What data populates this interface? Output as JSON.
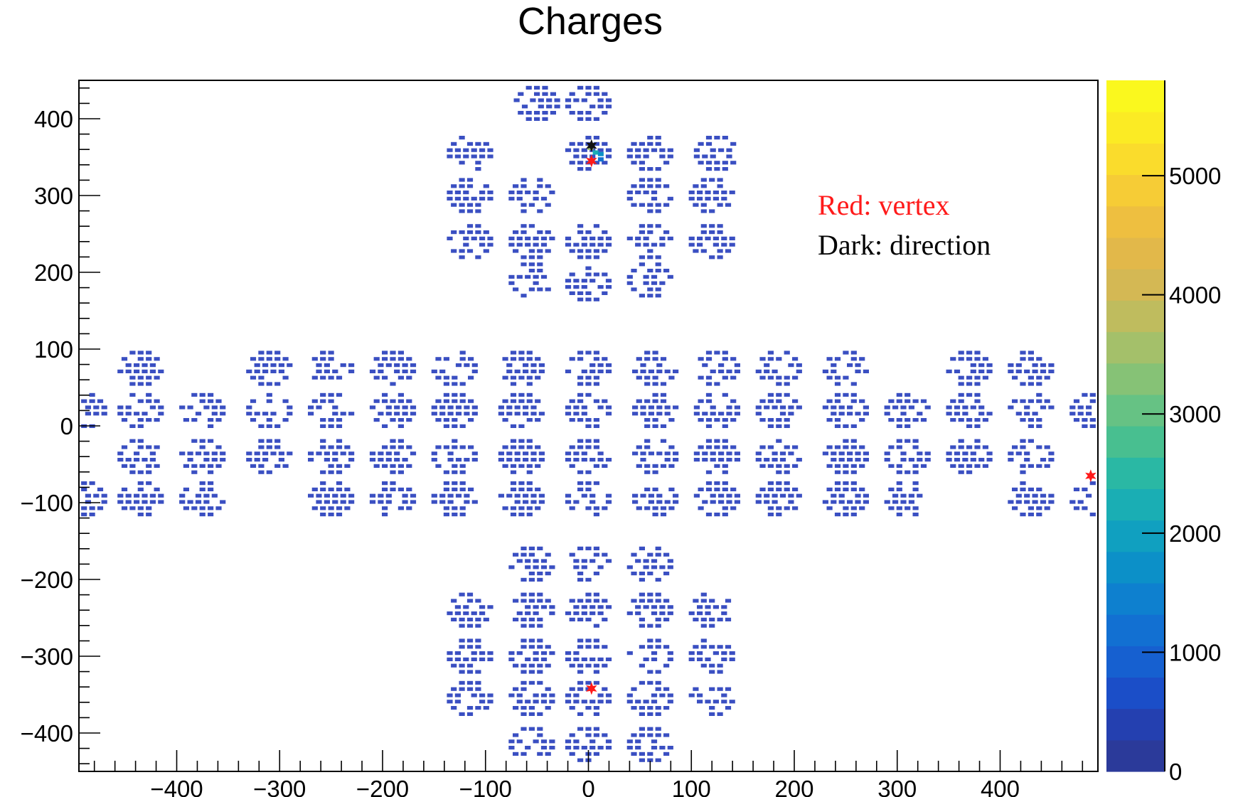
{
  "chart_data": {
    "type": "heatmap",
    "title": "Charges",
    "xlabel": "",
    "ylabel": "",
    "xlim": [
      -495,
      495
    ],
    "ylim": [
      -450,
      450
    ],
    "x_ticks": [
      -400,
      -300,
      -200,
      -100,
      0,
      100,
      200,
      300,
      400
    ],
    "y_ticks": [
      400,
      300,
      200,
      100,
      0,
      -100,
      -200,
      -300,
      -400
    ],
    "x_tick_labels": [
      "−400",
      "−300",
      "−200",
      "−100",
      "0",
      "100",
      "200",
      "300",
      "400"
    ],
    "y_tick_labels": [
      "400",
      "300",
      "200",
      "100",
      "0",
      "−100",
      "−200",
      "−300",
      "−400"
    ],
    "colorbar": {
      "range": [
        0,
        5800
      ],
      "ticks": [
        0,
        1000,
        2000,
        3000,
        4000,
        5000
      ],
      "tick_labels": [
        "0",
        "1000",
        "2000",
        "3000",
        "4000",
        "5000"
      ],
      "palette": [
        "#2b3a9a",
        "#2440b0",
        "#1b4ec8",
        "#1660d0",
        "#1270d2",
        "#0e80cf",
        "#0c90c8",
        "#10a0c0",
        "#1aaeb4",
        "#2ab8a4",
        "#48bf90",
        "#66c284",
        "#86c276",
        "#a4c06a",
        "#bfbc5e",
        "#d4b854",
        "#e2b84a",
        "#eebf40",
        "#f6cc36",
        "#fadc2c",
        "#fbeb24",
        "#faf81e"
      ]
    },
    "grid": false,
    "modules": [
      {
        "x": -50,
        "y": 420
      },
      {
        "x": 0,
        "y": 420
      },
      {
        "x": -115,
        "y": 355
      },
      {
        "x": 0,
        "y": 355
      },
      {
        "x": 60,
        "y": 355
      },
      {
        "x": 125,
        "y": 355
      },
      {
        "x": -115,
        "y": 300
      },
      {
        "x": -55,
        "y": 300
      },
      {
        "x": 60,
        "y": 300
      },
      {
        "x": 120,
        "y": 300
      },
      {
        "x": -115,
        "y": 240
      },
      {
        "x": -55,
        "y": 240
      },
      {
        "x": 0,
        "y": 240
      },
      {
        "x": 60,
        "y": 240
      },
      {
        "x": 120,
        "y": 240
      },
      {
        "x": -55,
        "y": 190
      },
      {
        "x": 0,
        "y": 185
      },
      {
        "x": 60,
        "y": 190
      },
      {
        "x": -435,
        "y": 75
      },
      {
        "x": -310,
        "y": 75
      },
      {
        "x": -250,
        "y": 75
      },
      {
        "x": -190,
        "y": 75
      },
      {
        "x": -130,
        "y": 75
      },
      {
        "x": -65,
        "y": 75
      },
      {
        "x": 0,
        "y": 75
      },
      {
        "x": 65,
        "y": 75
      },
      {
        "x": 125,
        "y": 75
      },
      {
        "x": 185,
        "y": 75
      },
      {
        "x": 250,
        "y": 75
      },
      {
        "x": 370,
        "y": 75
      },
      {
        "x": 430,
        "y": 75
      },
      {
        "x": -490,
        "y": 20
      },
      {
        "x": -435,
        "y": 20
      },
      {
        "x": -375,
        "y": 20
      },
      {
        "x": -310,
        "y": 20
      },
      {
        "x": -250,
        "y": 20
      },
      {
        "x": -190,
        "y": 20
      },
      {
        "x": -130,
        "y": 20
      },
      {
        "x": -65,
        "y": 20
      },
      {
        "x": 0,
        "y": 20
      },
      {
        "x": 65,
        "y": 20
      },
      {
        "x": 125,
        "y": 20
      },
      {
        "x": 185,
        "y": 20
      },
      {
        "x": 250,
        "y": 20
      },
      {
        "x": 310,
        "y": 20
      },
      {
        "x": 370,
        "y": 20
      },
      {
        "x": 430,
        "y": 20
      },
      {
        "x": 490,
        "y": 20
      },
      {
        "x": -435,
        "y": -40
      },
      {
        "x": -375,
        "y": -40
      },
      {
        "x": -310,
        "y": -40
      },
      {
        "x": -250,
        "y": -40
      },
      {
        "x": -190,
        "y": -40
      },
      {
        "x": -130,
        "y": -40
      },
      {
        "x": -65,
        "y": -40
      },
      {
        "x": 0,
        "y": -40
      },
      {
        "x": 65,
        "y": -40
      },
      {
        "x": 125,
        "y": -40
      },
      {
        "x": 185,
        "y": -40
      },
      {
        "x": 250,
        "y": -40
      },
      {
        "x": 310,
        "y": -40
      },
      {
        "x": 370,
        "y": -40
      },
      {
        "x": 430,
        "y": -40
      },
      {
        "x": -490,
        "y": -95
      },
      {
        "x": -435,
        "y": -95
      },
      {
        "x": -375,
        "y": -95
      },
      {
        "x": -250,
        "y": -95
      },
      {
        "x": -190,
        "y": -95
      },
      {
        "x": -130,
        "y": -95
      },
      {
        "x": -65,
        "y": -95
      },
      {
        "x": 0,
        "y": -95
      },
      {
        "x": 65,
        "y": -95
      },
      {
        "x": 125,
        "y": -95
      },
      {
        "x": 185,
        "y": -95
      },
      {
        "x": 250,
        "y": -95
      },
      {
        "x": 310,
        "y": -95
      },
      {
        "x": 430,
        "y": -95
      },
      {
        "x": 490,
        "y": -95
      },
      {
        "x": -55,
        "y": -180
      },
      {
        "x": 0,
        "y": -180
      },
      {
        "x": 60,
        "y": -180
      },
      {
        "x": -115,
        "y": -240
      },
      {
        "x": -55,
        "y": -240
      },
      {
        "x": 0,
        "y": -240
      },
      {
        "x": 60,
        "y": -240
      },
      {
        "x": 120,
        "y": -240
      },
      {
        "x": -115,
        "y": -300
      },
      {
        "x": -55,
        "y": -300
      },
      {
        "x": 0,
        "y": -300
      },
      {
        "x": 60,
        "y": -300
      },
      {
        "x": 120,
        "y": -300
      },
      {
        "x": -115,
        "y": -355
      },
      {
        "x": -55,
        "y": -355
      },
      {
        "x": 0,
        "y": -355
      },
      {
        "x": 60,
        "y": -355
      },
      {
        "x": 120,
        "y": -355
      },
      {
        "x": -55,
        "y": -415
      },
      {
        "x": 0,
        "y": -415
      },
      {
        "x": 60,
        "y": -415
      }
    ],
    "hot_cells": [
      {
        "x": 2,
        "y": 362,
        "value": 3500
      },
      {
        "x": 7,
        "y": 356,
        "value": 2200
      },
      {
        "x": 12,
        "y": 354,
        "value": 1800
      },
      {
        "x": 12,
        "y": 347,
        "value": 1200
      }
    ],
    "markers": [
      {
        "kind": "vertex",
        "color": "#ff1a1a",
        "x": 3,
        "y": 345
      },
      {
        "kind": "vertex",
        "color": "#ff1a1a",
        "x": 488,
        "y": -65
      },
      {
        "kind": "vertex",
        "color": "#ff1a1a",
        "x": 3,
        "y": -342
      },
      {
        "kind": "direction",
        "color": "#111111",
        "x": 3,
        "y": 365
      }
    ],
    "annotations": [
      {
        "text": "Red: vertex",
        "color": "#ff1a1a"
      },
      {
        "text": "Dark: direction",
        "color": "#000000"
      }
    ]
  },
  "colors": {
    "pixel": "#3a4fc2",
    "frame": "#000000",
    "background": "#ffffff"
  }
}
